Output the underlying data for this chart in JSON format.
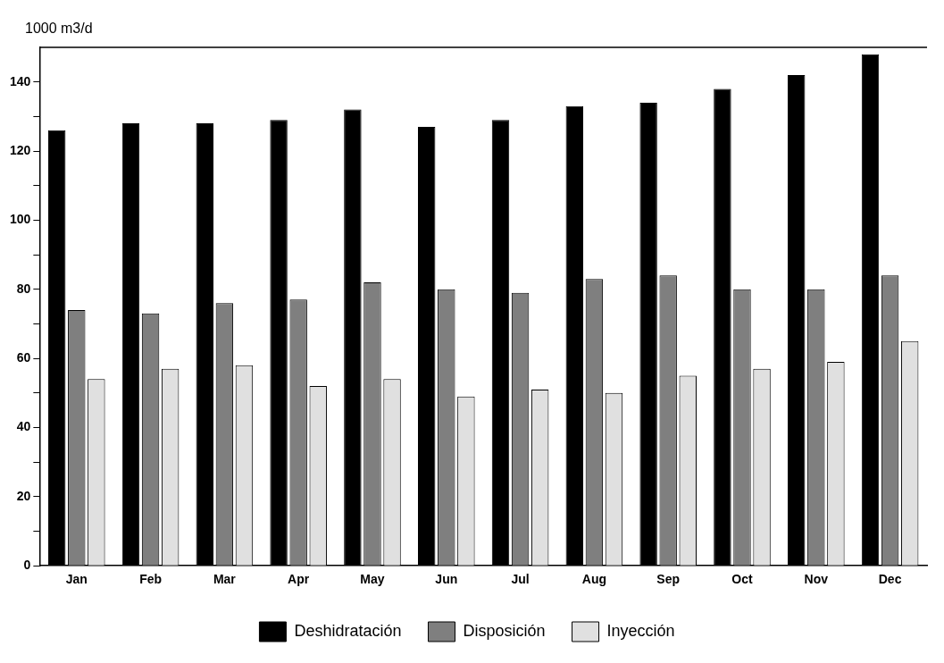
{
  "chart_data": {
    "type": "bar",
    "ylabel": "1000 m3/d",
    "categories": [
      "Jan",
      "Feb",
      "Mar",
      "Apr",
      "May",
      "Jun",
      "Jul",
      "Aug",
      "Sep",
      "Oct",
      "Nov",
      "Dec"
    ],
    "series": [
      {
        "name": "Deshidratación",
        "color": "#000000",
        "values": [
          126,
          128,
          128,
          129,
          132,
          127,
          129,
          133,
          134,
          138,
          142,
          148
        ]
      },
      {
        "name": "Disposición",
        "color": "#7f7f7f",
        "values": [
          74,
          73,
          76,
          77,
          82,
          80,
          79,
          83,
          84,
          80,
          80,
          84
        ]
      },
      {
        "name": "Inyección",
        "color": "#e0e0e0",
        "values": [
          54,
          57,
          58,
          52,
          54,
          49,
          51,
          50,
          55,
          57,
          59,
          65
        ]
      }
    ],
    "ylim": [
      0,
      150
    ],
    "yticks": [
      0,
      {
        "value": 10,
        "label": null
      },
      20,
      {
        "value": 30,
        "label": null
      },
      40,
      {
        "value": 50,
        "label": null
      },
      60,
      {
        "value": 70,
        "label": null
      },
      80,
      {
        "value": 90,
        "label": null
      },
      100,
      {
        "value": 110,
        "label": null
      },
      120,
      {
        "value": 130,
        "label": null
      },
      140
    ],
    "grid": false,
    "legend": "bottom"
  }
}
